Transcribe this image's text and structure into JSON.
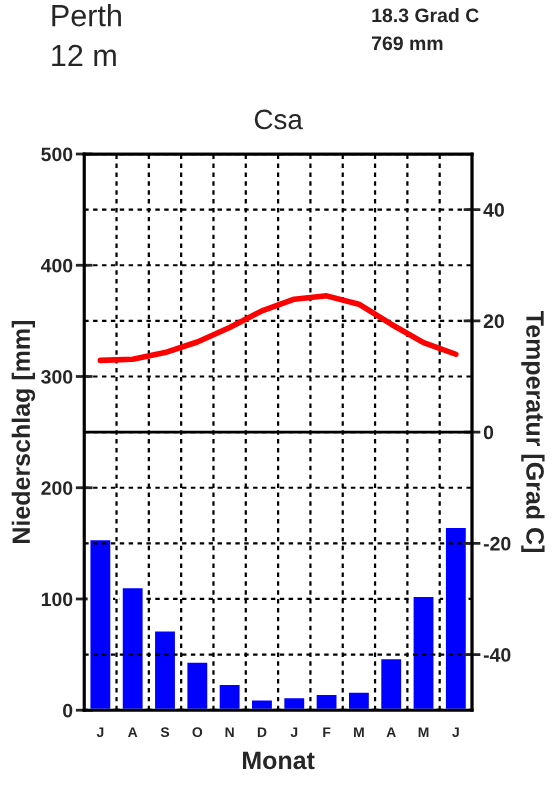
{
  "chart_data": {
    "type": "bar",
    "title": "Perth",
    "subtitle": "12 m",
    "annotations": [
      "18.3 Grad C",
      "769 mm",
      "Csa"
    ],
    "xlabel": "Monat",
    "ylabel": "Niederschlag [mm]",
    "y2label": "Temperatur [Grad C]",
    "categories": [
      "J",
      "A",
      "S",
      "O",
      "N",
      "D",
      "J",
      "F",
      "M",
      "A",
      "M",
      "J"
    ],
    "series": [
      {
        "color": "#0000ff",
        "values": [
          154,
          111,
          72,
          44,
          24,
          10,
          12,
          15,
          17,
          47,
          103,
          165
        ]
      },
      {
        "type": "line",
        "axis": "y2",
        "color": "#ff0000",
        "line_style": "solid",
        "values": [
          12.9,
          13.1,
          14.3,
          16.2,
          18.8,
          21.8,
          23.9,
          24.5,
          23.0,
          19.4,
          16.1,
          14.0
        ]
      }
    ],
    "ylim": [
      0,
      500
    ],
    "yticks": [
      0,
      100,
      200,
      300,
      400,
      500
    ],
    "y2lim": [
      -50,
      50
    ],
    "y2ticks": [
      -40,
      -20,
      0,
      20,
      40
    ],
    "ref_lines": [
      {
        "axis": "y2",
        "value": 0,
        "color": "#000000",
        "line_style": "solid"
      }
    ],
    "grid": true,
    "legend": false
  }
}
